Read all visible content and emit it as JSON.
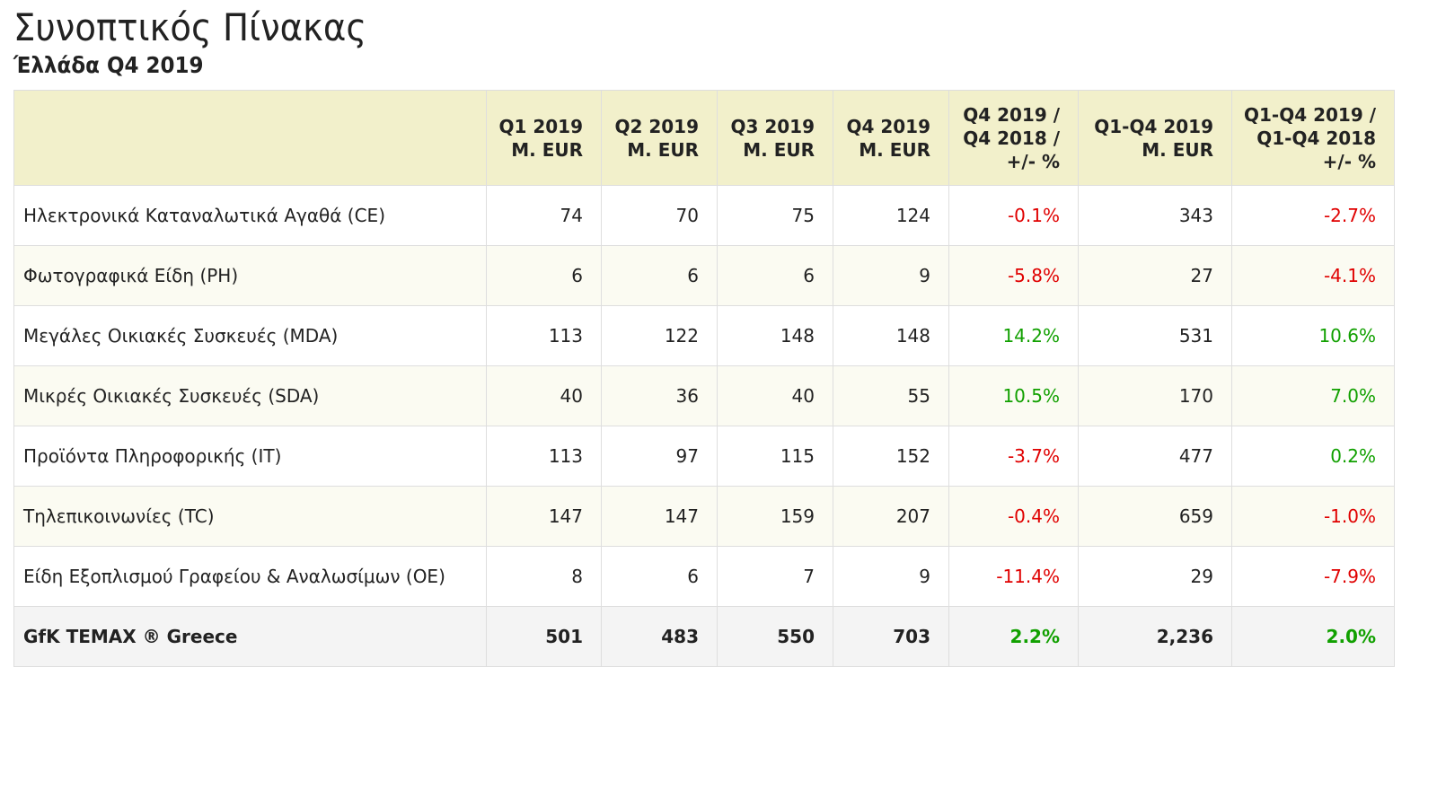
{
  "title": "Συνοπτικός Πίνακας",
  "subtitle": "Έλλάδα Q4 2019",
  "colors": {
    "negative": "#e00000",
    "positive": "#11a000",
    "header_bg": "#f2f0cb"
  },
  "columns": [
    {
      "line1": "",
      "line2": "",
      "line3": ""
    },
    {
      "line1": "Q1 2019",
      "line2": "M. EUR",
      "line3": ""
    },
    {
      "line1": "Q2 2019",
      "line2": "M. EUR",
      "line3": ""
    },
    {
      "line1": "Q3 2019",
      "line2": "M. EUR",
      "line3": ""
    },
    {
      "line1": "Q4 2019",
      "line2": "M. EUR",
      "line3": ""
    },
    {
      "line1": "Q4 2019 /",
      "line2": "Q4 2018 /",
      "line3": "+/- %"
    },
    {
      "line1": "Q1-Q4 2019",
      "line2": "M. EUR",
      "line3": ""
    },
    {
      "line1": "Q1-Q4 2019 /",
      "line2": "Q1-Q4 2018",
      "line3": "+/- %"
    }
  ],
  "rows": [
    {
      "name": "Ηλεκτρονικά Καταναλωτικά Αγαθά (CE)",
      "q1": "74",
      "q2": "70",
      "q3": "75",
      "q4": "124",
      "q4chg": "-0.1%",
      "ytd": "343",
      "ytdchg": "-2.7%"
    },
    {
      "name": "Φωτογραφικά Είδη (PH)",
      "q1": "6",
      "q2": "6",
      "q3": "6",
      "q4": "9",
      "q4chg": "-5.8%",
      "ytd": "27",
      "ytdchg": "-4.1%"
    },
    {
      "name": "Μεγάλες Οικιακές Συσκευές (MDA)",
      "q1": "113",
      "q2": "122",
      "q3": "148",
      "q4": "148",
      "q4chg": "14.2%",
      "ytd": "531",
      "ytdchg": "10.6%"
    },
    {
      "name": "Μικρές Οικιακές Συσκευές (SDA)",
      "q1": "40",
      "q2": "36",
      "q3": "40",
      "q4": "55",
      "q4chg": "10.5%",
      "ytd": "170",
      "ytdchg": "7.0%"
    },
    {
      "name": "Προϊόντα Πληροφορικής (IT)",
      "q1": "113",
      "q2": "97",
      "q3": "115",
      "q4": "152",
      "q4chg": "-3.7%",
      "ytd": "477",
      "ytdchg": "0.2%"
    },
    {
      "name": "Τηλεπικοινωνίες (TC)",
      "q1": "147",
      "q2": "147",
      "q3": "159",
      "q4": "207",
      "q4chg": "-0.4%",
      "ytd": "659",
      "ytdchg": "-1.0%"
    },
    {
      "name": "Είδη Εξοπλισμού Γραφείου & Αναλωσίμων (OE)",
      "q1": "8",
      "q2": "6",
      "q3": "7",
      "q4": "9",
      "q4chg": "-11.4%",
      "ytd": "29",
      "ytdchg": "-7.9%"
    }
  ],
  "total": {
    "name": "GfK TEMAX ® Greece",
    "q1": "501",
    "q2": "483",
    "q3": "550",
    "q4": "703",
    "q4chg": "2.2%",
    "ytd": "2,236",
    "ytdchg": "2.0%"
  }
}
